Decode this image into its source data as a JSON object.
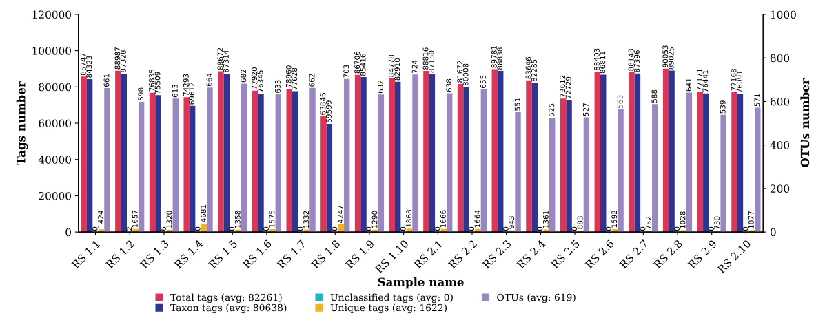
{
  "chart_data": {
    "type": "bar",
    "xlabel": "Sample name",
    "ylabel": "Tags number",
    "y2label": "OTUs number",
    "categories": [
      "RS 1.1",
      "RS 1.2",
      "RS 1.3",
      "RS 1.4",
      "RS 1.5",
      "RS 1.6",
      "RS 1.7",
      "RS 1.8",
      "RS 1.9",
      "RS 1.10",
      "RS 2.1",
      "RS 2.2",
      "RS 2.3",
      "RS 2.4",
      "RS 2.5",
      "RS 2.6",
      "RS 2.7",
      "RS 2.8",
      "RS 2.9",
      "RS 2.10"
    ],
    "series": [
      {
        "name": "Total tags (avg: 82261)",
        "color": "#dc3558",
        "values": [
          85747,
          88987,
          76835,
          74293,
          88672,
          77920,
          78960,
          63846,
          86706,
          84778,
          88816,
          81672,
          89781,
          83646,
          73612,
          88403,
          88148,
          90053,
          77171,
          77168
        ]
      },
      {
        "name": "Taxon tags (avg: 80638)",
        "color": "#2e3591",
        "values": [
          84323,
          87328,
          75509,
          69612,
          87314,
          76345,
          77628,
          59599,
          85416,
          82910,
          87150,
          80008,
          88838,
          82285,
          72729,
          86811,
          87396,
          89025,
          76441,
          76091
        ]
      },
      {
        "name": "Unclassified tags (avg: 0)",
        "color": "#1bb7c9",
        "values": [
          0,
          2,
          6,
          0,
          0,
          0,
          0,
          0,
          0,
          0,
          0,
          0,
          0,
          0,
          0,
          0,
          0,
          0,
          0,
          0
        ]
      },
      {
        "name": "Unique tags (avg: 1622)",
        "color": "#f5b120",
        "values": [
          1424,
          1657,
          1320,
          4681,
          1358,
          1575,
          1332,
          4247,
          1290,
          1868,
          1666,
          1664,
          943,
          1361,
          883,
          1592,
          752,
          1028,
          730,
          1077
        ]
      },
      {
        "name": "OTUs (avg: 619)",
        "color": "#9b87c0",
        "axis": "y2",
        "values": [
          661,
          598,
          613,
          664,
          682,
          633,
          662,
          703,
          632,
          724,
          638,
          655,
          551,
          525,
          527,
          563,
          588,
          641,
          539,
          571
        ]
      }
    ],
    "ylim": [
      0,
      120000
    ],
    "yticks": [
      0,
      20000,
      40000,
      60000,
      80000,
      100000,
      120000
    ],
    "y2lim": [
      0,
      1000
    ],
    "y2ticks": [
      0,
      200,
      400,
      600,
      800,
      1000
    ],
    "data_labels": true,
    "grid": false,
    "legend": "bottom"
  }
}
